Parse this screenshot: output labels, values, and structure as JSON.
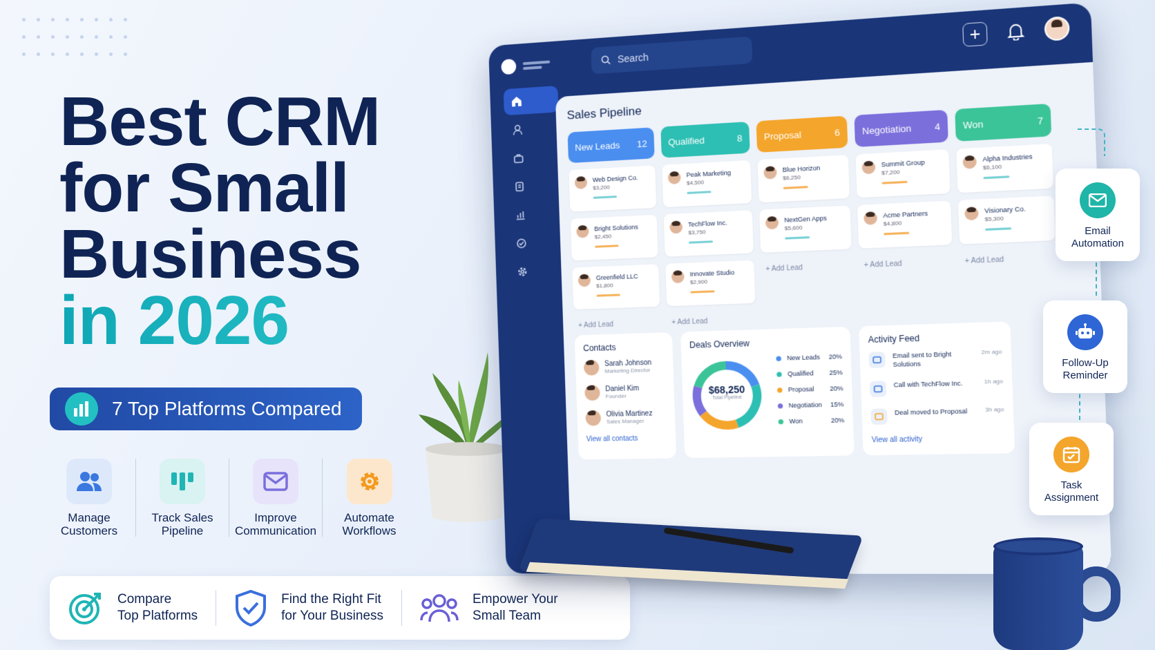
{
  "headline": {
    "line1": "Best CRM",
    "line2": "for Small",
    "line3": "Business",
    "line4": "in 2026"
  },
  "badge": {
    "text": "7 Top Platforms Compared",
    "icon": "bar-chart-icon"
  },
  "features": [
    {
      "label": "Manage Customers",
      "icon": "users-icon",
      "color": "#3a78e0",
      "bg": "#dde9fb"
    },
    {
      "label": "Track Sales Pipeline",
      "icon": "columns-icon",
      "color": "#1fb5b5",
      "bg": "#d8f3f1"
    },
    {
      "label": "Improve Communication",
      "icon": "mail-icon",
      "color": "#7b6fdc",
      "bg": "#e6e3fa"
    },
    {
      "label": "Automate Workflows",
      "icon": "gear-icon",
      "color": "#f39a1f",
      "bg": "#fde7cc"
    }
  ],
  "bottom_bar": [
    {
      "line1": "Compare",
      "line2": "Top Platforms",
      "icon": "target-icon"
    },
    {
      "line1": "Find the Right Fit",
      "line2": "for Your Business",
      "icon": "shield-check-icon"
    },
    {
      "line1": "Empower Your",
      "line2": "Small Team",
      "icon": "team-icon"
    }
  ],
  "dashboard": {
    "search_placeholder": "Search",
    "pipeline_title": "Sales Pipeline",
    "columns": [
      {
        "name": "New Leads",
        "count": "12",
        "color": "#4a8ef0",
        "cards": [
          {
            "name": "Web Design Co.",
            "value": "$3,200",
            "bar": "#7ad1d6"
          },
          {
            "name": "Bright Solutions",
            "value": "$2,450",
            "bar": "#f5b35c"
          },
          {
            "name": "Greenfield LLC",
            "value": "$1,800",
            "bar": "#f5b35c"
          }
        ],
        "add": "+ Add Lead"
      },
      {
        "name": "Qualified",
        "count": "8",
        "color": "#2dbfb3",
        "cards": [
          {
            "name": "Peak Marketing",
            "value": "$4,500",
            "bar": "#7ad1d6"
          },
          {
            "name": "TechFlow Inc.",
            "value": "$3,750",
            "bar": "#7ad1d6"
          },
          {
            "name": "Innovate Studio",
            "value": "$2,900",
            "bar": "#f5b35c"
          }
        ],
        "add": "+ Add Lead"
      },
      {
        "name": "Proposal",
        "count": "6",
        "color": "#f4a52b",
        "cards": [
          {
            "name": "Blue Horizon",
            "value": "$6,250",
            "bar": "#f5b35c"
          },
          {
            "name": "NextGen Apps",
            "value": "$5,600",
            "bar": "#7ad1d6"
          }
        ],
        "add": "+ Add Lead"
      },
      {
        "name": "Negotiation",
        "count": "4",
        "color": "#7b6fdc",
        "cards": [
          {
            "name": "Summit Group",
            "value": "$7,200",
            "bar": "#f5b35c"
          },
          {
            "name": "Acme Partners",
            "value": "$4,800",
            "bar": "#f5b35c"
          }
        ],
        "add": "+ Add Lead"
      },
      {
        "name": "Won",
        "count": "7",
        "color": "#3cc499",
        "cards": [
          {
            "name": "Alpha Industries",
            "value": "$6,100",
            "bar": "#7ad1d6"
          },
          {
            "name": "Visionary Co.",
            "value": "$5,300",
            "bar": "#7ad1d6"
          }
        ],
        "add": "+ Add Lead"
      }
    ],
    "contacts": {
      "title": "Contacts",
      "people": [
        {
          "name": "Sarah Johnson",
          "role": "Marketing Director"
        },
        {
          "name": "Daniel Kim",
          "role": "Founder"
        },
        {
          "name": "Olivia Martinez",
          "role": "Sales Manager"
        }
      ],
      "link": "View all contacts"
    },
    "deals": {
      "title": "Deals Overview",
      "total": "$68,250",
      "total_label": "Total Pipeline",
      "legend": [
        {
          "label": "New Leads",
          "pct": "20%",
          "color": "#4a8ef0",
          "value": 20
        },
        {
          "label": "Qualified",
          "pct": "25%",
          "color": "#2dbfb3",
          "value": 25
        },
        {
          "label": "Proposal",
          "pct": "20%",
          "color": "#f4a52b",
          "value": 20
        },
        {
          "label": "Negotiation",
          "pct": "15%",
          "color": "#7b6fdc",
          "value": 15
        },
        {
          "label": "Won",
          "pct": "20%",
          "color": "#3cc499",
          "value": 20
        }
      ]
    },
    "activity": {
      "title": "Activity Feed",
      "items": [
        {
          "text": "Email sent to Bright Solutions",
          "time": "2m ago",
          "icon": "mail-icon",
          "color": "#3a78e0"
        },
        {
          "text": "Call with TechFlow Inc.",
          "time": "1h ago",
          "icon": "phone-icon",
          "color": "#3a78e0"
        },
        {
          "text": "Deal moved to Proposal",
          "time": "3h ago",
          "icon": "clipboard-icon",
          "color": "#f4a52b"
        }
      ],
      "link": "View all activity"
    }
  },
  "float_cards": [
    {
      "label": "Email Automation",
      "icon": "mail-icon",
      "color": "#1fb5a8"
    },
    {
      "label": "Follow-Up Reminder",
      "icon": "robot-icon",
      "color": "#2e66d6"
    },
    {
      "label": "Task Assignment",
      "icon": "calendar-check-icon",
      "color": "#f4a52b"
    }
  ]
}
